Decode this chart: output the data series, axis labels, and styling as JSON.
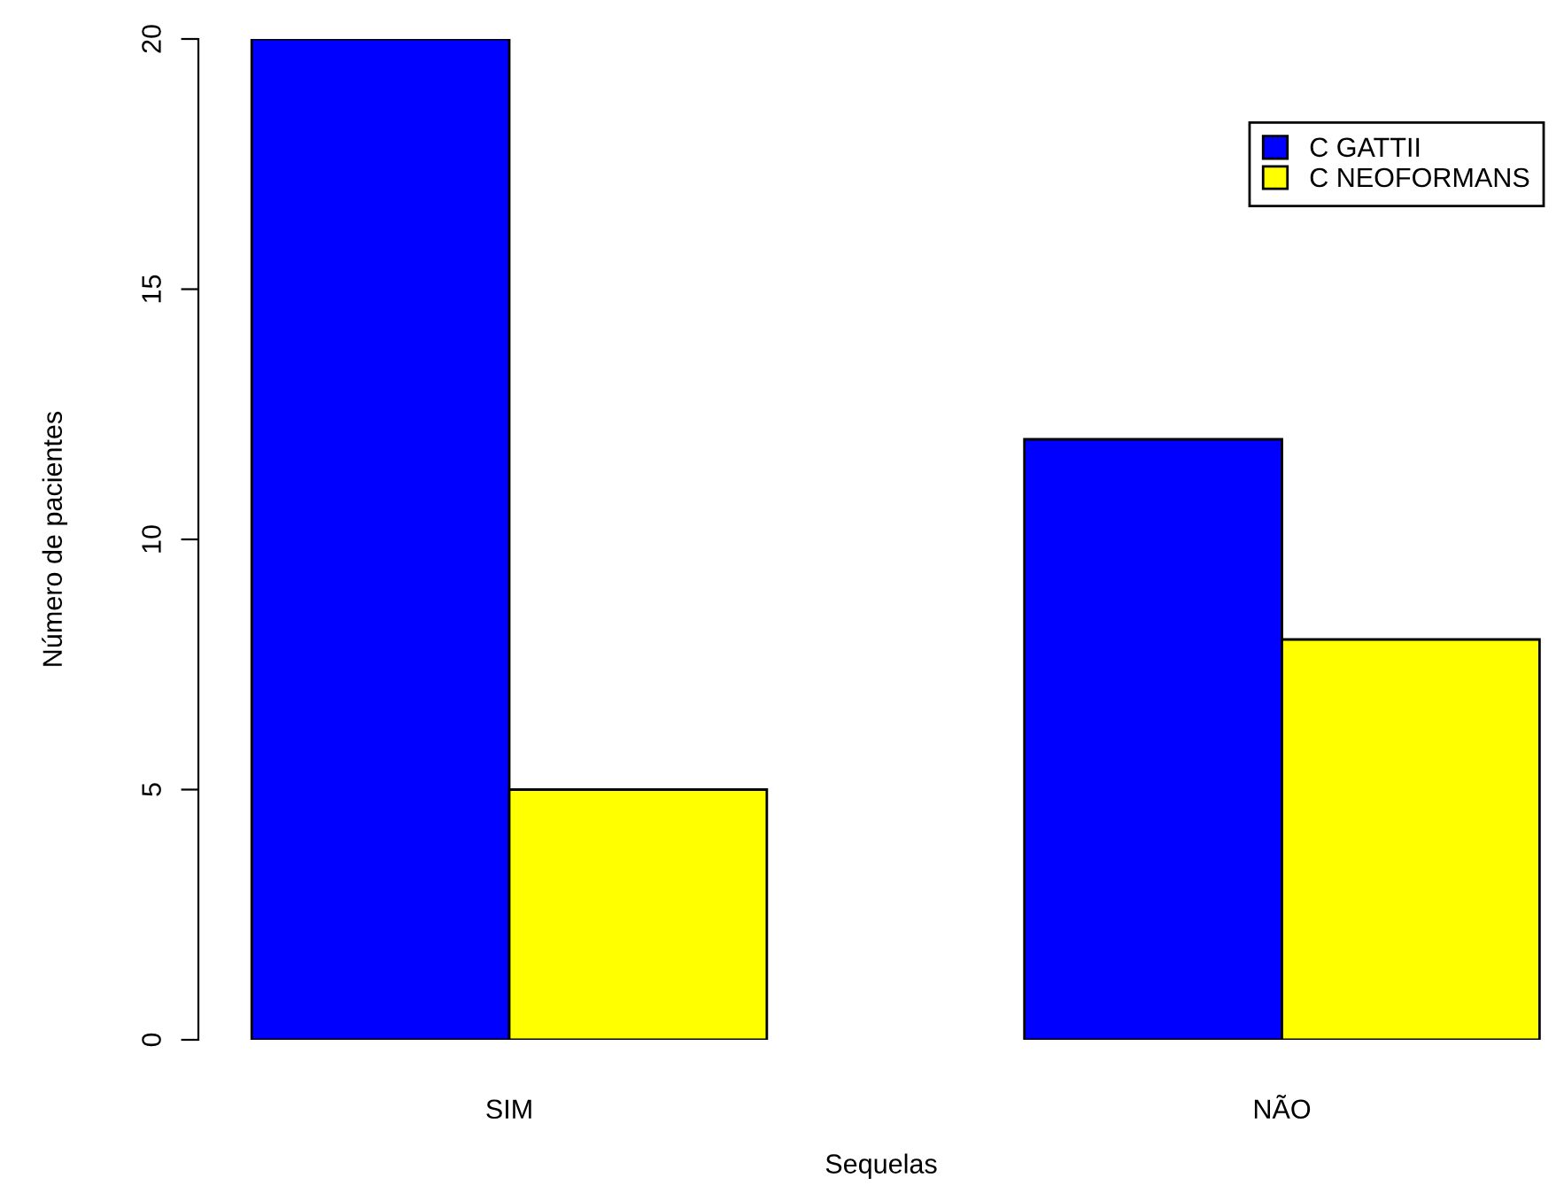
{
  "chart_data": {
    "type": "bar",
    "xlabel": "Sequelas",
    "ylabel": "Número de pacientes",
    "categories": [
      "SIM",
      "NÃO"
    ],
    "series": [
      {
        "name": "C GATTII",
        "color": "#0000ff",
        "values": [
          20,
          12
        ]
      },
      {
        "name": "C NEOFORMANS",
        "color": "#ffff00",
        "values": [
          5,
          8
        ]
      }
    ],
    "ylim": [
      0,
      20
    ],
    "yticks": [
      0,
      5,
      10,
      15,
      20
    ],
    "grid": false,
    "legend": "top right"
  }
}
